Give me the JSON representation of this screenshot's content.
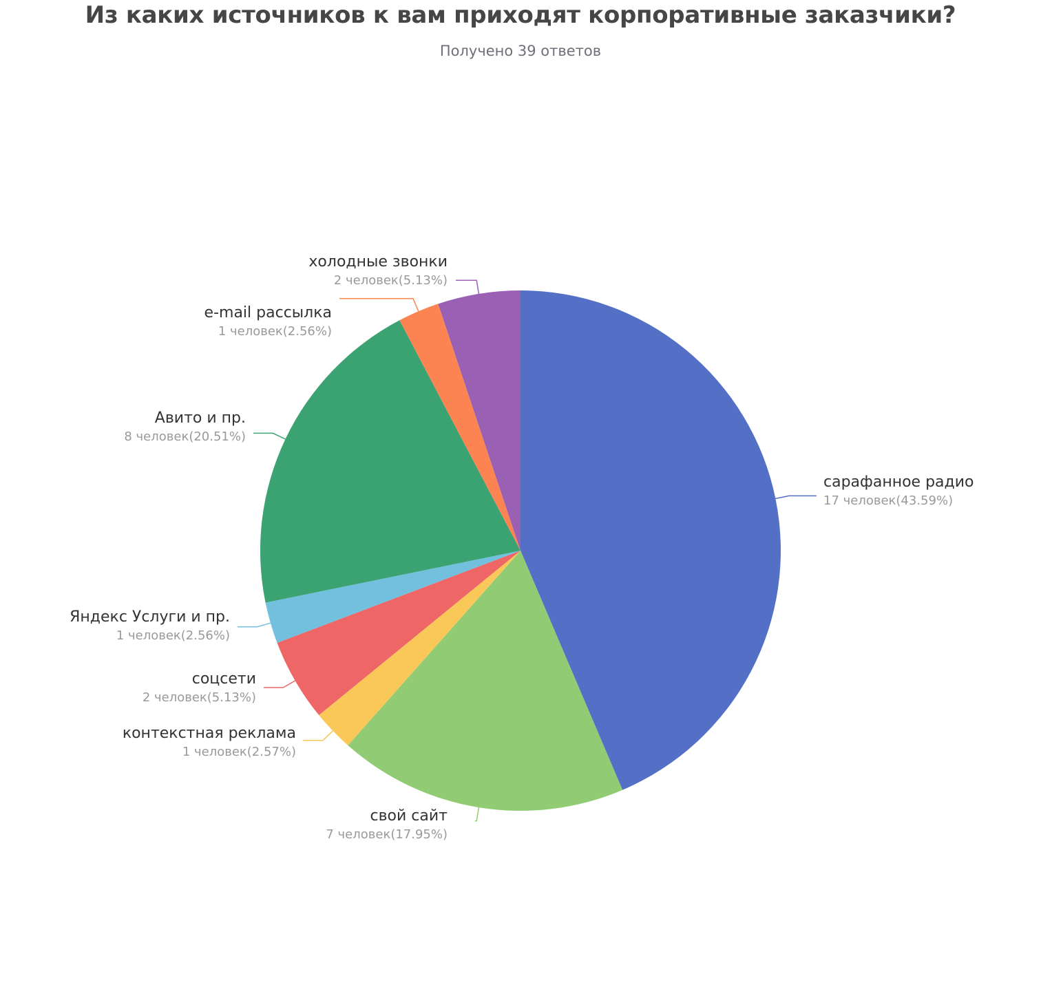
{
  "header": {
    "title": "Из каких источников к вам приходят корпоративные заказчики?",
    "subtitle": "Получено 39 ответов"
  },
  "chart_data": {
    "type": "pie",
    "title": "Из каких источников к вам приходят корпоративные заказчики?",
    "subtitle": "Получено 39 ответов",
    "total_responses": 39,
    "categories": [
      "сарафанное радио",
      "свой сайт",
      "контекстная реклама",
      "соцсети",
      "Яндекс Услуги и пр.",
      "Авито и пр.",
      "e-mail рассылка",
      "холодные звонки"
    ],
    "values": [
      17,
      7,
      1,
      2,
      1,
      8,
      1,
      2
    ],
    "percents": [
      43.59,
      17.95,
      2.57,
      5.13,
      2.56,
      20.51,
      2.56,
      5.13
    ],
    "colors": [
      "#5470c6",
      "#91cc75",
      "#fac858",
      "#ee6666",
      "#73c0de",
      "#3ba272",
      "#fc8452",
      "#9a60b4"
    ],
    "legend": "none (labels with leader lines)",
    "start_angle": "12 o'clock, clockwise"
  },
  "labels": [
    {
      "name": "сарафанное радио",
      "value": "17 человек(43.59%)"
    },
    {
      "name": "свой сайт",
      "value": "7 человек(17.95%)"
    },
    {
      "name": "контекстная реклама",
      "value": "1 человек(2.57%)"
    },
    {
      "name": "соцсети",
      "value": "2 человек(5.13%)"
    },
    {
      "name": "Яндекс Услуги и пр.",
      "value": "1 человек(2.56%)"
    },
    {
      "name": "Авито и пр.",
      "value": "8 человек(20.51%)"
    },
    {
      "name": "e-mail рассылка",
      "value": "1 человек(2.56%)"
    },
    {
      "name": "холодные звонки",
      "value": "2 человек(5.13%)"
    }
  ]
}
